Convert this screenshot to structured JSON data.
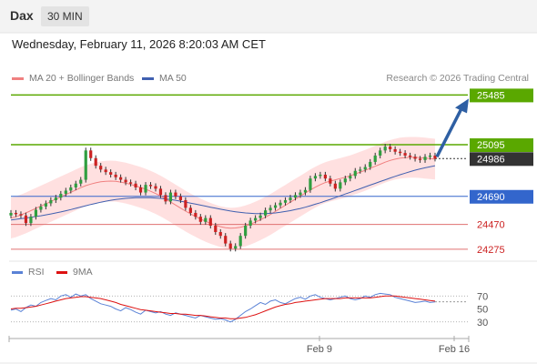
{
  "header": {
    "symbol": "Dax",
    "timeframe": "30 MIN"
  },
  "datetime": "Wednesday, February 11, 2026 8:20:03 AM CET",
  "legend": {
    "ma20_label": "MA 20 + Bollinger Bands",
    "ma50_label": "MA 50",
    "credit": "Research © 2026 Trading Central",
    "rsi_label": "RSI",
    "rsi_ma_label": "9MA"
  },
  "colors": {
    "up": "#2f9e3f",
    "down": "#cc2222",
    "resistance": "#5aa800",
    "support": "#3366cc",
    "target_line": "#e07070",
    "ma20": "#f08080",
    "ma50": "#4060b0",
    "bb_fill": "#ffd6d6",
    "arrow": "#2e5fa3",
    "rsi": "#5a82d6",
    "rsi_ma": "#dd1111",
    "current": "#333333"
  },
  "chart_data": [
    {
      "type": "candlestick",
      "title": "",
      "ylim": [
        24210,
        25545
      ],
      "x_ticks": [
        "Feb 9",
        "Feb 16"
      ],
      "price_levels": [
        {
          "value": 25485,
          "label": "25485",
          "kind": "resistance"
        },
        {
          "value": 25095,
          "label": "25095",
          "kind": "resistance"
        },
        {
          "value": 24986,
          "label": "24986",
          "kind": "current"
        },
        {
          "value": 24690,
          "label": "24690",
          "kind": "support"
        },
        {
          "value": 24470,
          "label": "24470",
          "kind": "target"
        },
        {
          "value": 24275,
          "label": "24275",
          "kind": "target"
        }
      ],
      "closes": [
        24560,
        24550,
        24540,
        24480,
        24530,
        24585,
        24610,
        24635,
        24660,
        24680,
        24710,
        24735,
        24760,
        24790,
        24820,
        25050,
        24990,
        24930,
        24900,
        24880,
        24860,
        24840,
        24820,
        24800,
        24790,
        24760,
        24720,
        24780,
        24770,
        24750,
        24700,
        24650,
        24720,
        24690,
        24660,
        24600,
        24560,
        24530,
        24490,
        24520,
        24460,
        24410,
        24380,
        24320,
        24280,
        24300,
        24380,
        24460,
        24500,
        24520,
        24540,
        24580,
        24600,
        24620,
        24640,
        24660,
        24680,
        24700,
        24720,
        24740,
        24830,
        24850,
        24860,
        24830,
        24790,
        24750,
        24800,
        24830,
        24850,
        24890,
        24900,
        24920,
        24960,
        25010,
        25050,
        25080,
        25060,
        25040,
        25030,
        25010,
        25000,
        24985,
        24975,
        25000,
        25010,
        24986
      ],
      "ma20": [
        24520,
        24530,
        24545,
        24560,
        24578,
        24596,
        24614,
        24632,
        24650,
        24668,
        24686,
        24704,
        24722,
        24740,
        24758,
        24774,
        24786,
        24796,
        24804,
        24808,
        24810,
        24808,
        24802,
        24794,
        24784,
        24772,
        24760,
        24746,
        24730,
        24712,
        24692,
        24670,
        24646,
        24622,
        24598,
        24574,
        24552,
        24532,
        24512,
        24494,
        24478,
        24464,
        24452,
        24444,
        24440,
        24442,
        24448,
        24458,
        24472,
        24488,
        24506,
        24526,
        24548,
        24572,
        24596,
        24620,
        24644,
        24668,
        24692,
        24716,
        24740,
        24762,
        24782,
        24798,
        24810,
        24820,
        24830,
        24840,
        24852,
        24866,
        24880,
        24894,
        24910,
        24926,
        24942,
        24958,
        24972,
        24982,
        24990,
        24994,
        24996,
        24996,
        24994,
        24990,
        24986,
        24982
      ],
      "ma50": [
        24505,
        24510,
        24515,
        24520,
        24526,
        24532,
        24538,
        24545,
        24552,
        24560,
        24568,
        24577,
        24586,
        24596,
        24606,
        24616,
        24626,
        24635,
        24644,
        24652,
        24659,
        24665,
        24670,
        24674,
        24677,
        24679,
        24680,
        24680,
        24679,
        24677,
        24674,
        24670,
        24665,
        24659,
        24652,
        24645,
        24637,
        24629,
        24621,
        24613,
        24605,
        24597,
        24589,
        24582,
        24575,
        24569,
        24564,
        24560,
        24557,
        24555,
        24554,
        24555,
        24557,
        24560,
        24565,
        24571,
        24578,
        24586,
        24595,
        24605,
        24616,
        24628,
        24640,
        24653,
        24666,
        24680,
        24694,
        24708,
        24722,
        24736,
        24750,
        24764,
        24778,
        24792,
        24806,
        24820,
        24834,
        24847,
        24860,
        24872,
        24884,
        24895,
        24905,
        24914,
        24922,
        24930
      ],
      "projection_arrow": {
        "from_value": 24986,
        "to_value": 25485
      }
    },
    {
      "type": "line",
      "title": "",
      "ylim": [
        10,
        90
      ],
      "y_ticks": [
        70,
        50,
        30
      ],
      "reference_levels": [
        70,
        30
      ],
      "series": [
        {
          "name": "RSI",
          "values": [
            48,
            50,
            46,
            52,
            56,
            54,
            60,
            63,
            66,
            64,
            70,
            72,
            68,
            73,
            70,
            72,
            66,
            62,
            58,
            56,
            54,
            50,
            47,
            52,
            49,
            45,
            42,
            48,
            46,
            44,
            46,
            42,
            40,
            44,
            42,
            40,
            38,
            36,
            40,
            38,
            36,
            34,
            35,
            33,
            30,
            34,
            40,
            46,
            50,
            55,
            60,
            57,
            62,
            64,
            60,
            58,
            62,
            66,
            68,
            65,
            70,
            72,
            68,
            66,
            64,
            66,
            68,
            70,
            66,
            64,
            66,
            70,
            68,
            72,
            74,
            73,
            72,
            68,
            66,
            64,
            62,
            60,
            61,
            62,
            60,
            61
          ]
        },
        {
          "name": "9MA",
          "values": [
            50,
            51,
            51,
            52,
            53,
            54,
            56,
            58,
            60,
            62,
            64,
            66,
            67,
            68,
            69,
            69,
            68,
            67,
            66,
            64,
            62,
            60,
            57,
            55,
            53,
            51,
            49,
            48,
            47,
            46,
            45,
            44,
            43,
            43,
            42,
            42,
            41,
            40,
            40,
            39,
            38,
            37,
            36,
            36,
            35,
            35,
            36,
            37,
            39,
            41,
            44,
            47,
            50,
            53,
            55,
            57,
            58,
            60,
            61,
            62,
            63,
            64,
            65,
            66,
            66,
            66,
            66,
            67,
            67,
            67,
            67,
            67,
            67,
            68,
            69,
            70,
            70,
            70,
            69,
            68,
            67,
            66,
            65,
            64,
            63,
            62
          ]
        }
      ]
    }
  ]
}
